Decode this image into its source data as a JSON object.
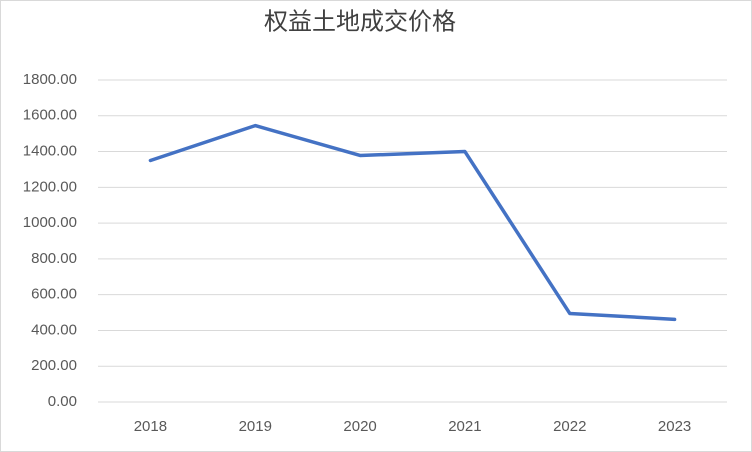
{
  "chart_data": {
    "type": "line",
    "title": "权益土地成交价格",
    "categories": [
      "2018",
      "2019",
      "2020",
      "2021",
      "2022",
      "2023"
    ],
    "values": [
      1350,
      1545,
      1378,
      1400,
      495,
      462
    ],
    "color": "#4472c4",
    "ylim": [
      0,
      1800
    ],
    "yticks": [
      {
        "value": 0,
        "label": "0.00"
      },
      {
        "value": 200,
        "label": "200.00"
      },
      {
        "value": 400,
        "label": "400.00"
      },
      {
        "value": 600,
        "label": "600.00"
      },
      {
        "value": 800,
        "label": "800.00"
      },
      {
        "value": 1000,
        "label": "1000.00"
      },
      {
        "value": 1200,
        "label": "1200.00"
      },
      {
        "value": 1400,
        "label": "1400.00"
      },
      {
        "value": 1600,
        "label": "1600.00"
      },
      {
        "value": 1800,
        "label": "1800.00"
      }
    ],
    "grid": true
  }
}
